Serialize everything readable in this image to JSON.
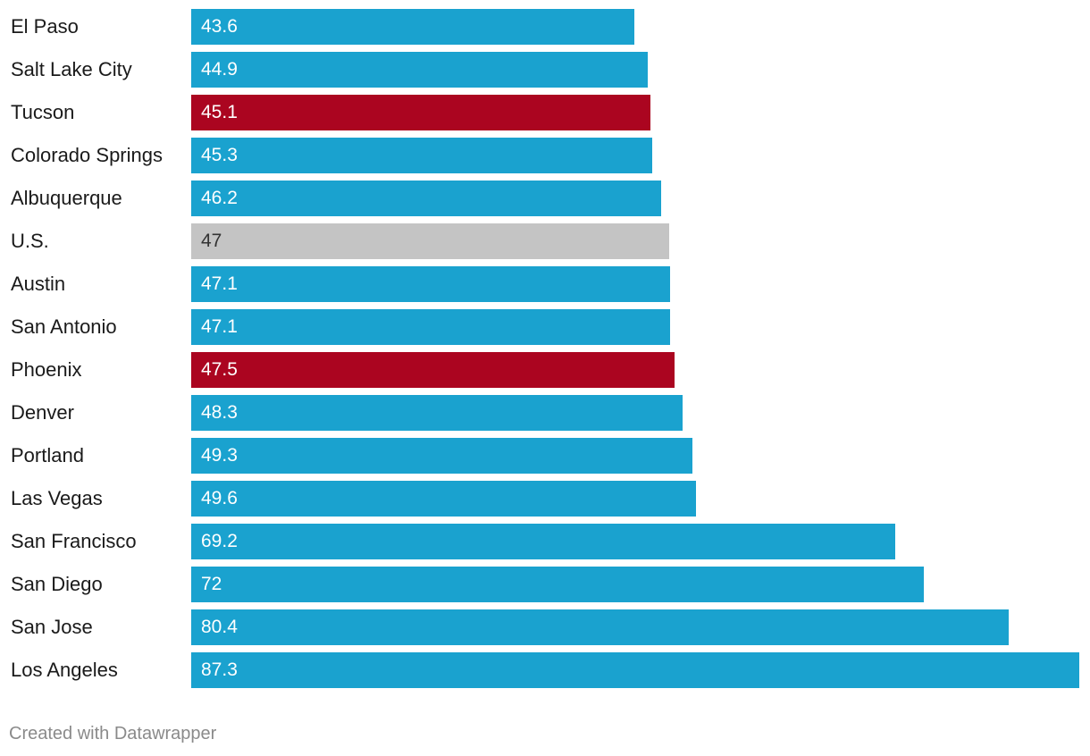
{
  "chart_data": {
    "type": "bar",
    "orientation": "horizontal",
    "title": "",
    "xlabel": "",
    "ylabel": "",
    "xlim": [
      0,
      87.3
    ],
    "grid": false,
    "categories": [
      "El Paso",
      "Salt Lake City",
      "Tucson",
      "Colorado Springs",
      "Albuquerque",
      "U.S.",
      "Austin",
      "San Antonio",
      "Phoenix",
      "Denver",
      "Portland",
      "Las Vegas",
      "San Francisco",
      "San Diego",
      "San Jose",
      "Los Angeles"
    ],
    "values": [
      43.6,
      44.9,
      45.1,
      45.3,
      46.2,
      47,
      47.1,
      47.1,
      47.5,
      48.3,
      49.3,
      49.6,
      69.2,
      72,
      80.4,
      87.3
    ],
    "value_labels": [
      "43.6",
      "44.9",
      "45.1",
      "45.3",
      "46.2",
      "47",
      "47.1",
      "47.1",
      "47.5",
      "48.3",
      "49.3",
      "49.6",
      "69.2",
      "72",
      "80.4",
      "87.3"
    ],
    "highlight": [
      "default",
      "default",
      "highlight",
      "default",
      "default",
      "reference",
      "default",
      "default",
      "highlight",
      "default",
      "default",
      "default",
      "default",
      "default",
      "default",
      "default"
    ]
  },
  "colors": {
    "default": "#1aa2cf",
    "highlight": "#ab0520",
    "reference": "#c4c4c4",
    "label_on_dark": "#ffffff",
    "label_on_light": "#333333"
  },
  "footer": {
    "credit": "Created with Datawrapper"
  }
}
